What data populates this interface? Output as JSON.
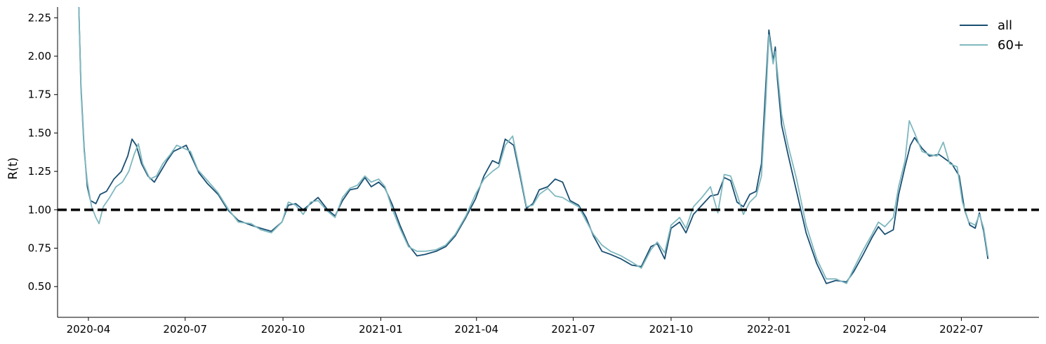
{
  "chart_data": {
    "type": "line",
    "title": "",
    "xlabel": "",
    "ylabel": "R(t)",
    "xlim": [
      "2020-03-03",
      "2022-09-12"
    ],
    "ylim": [
      0.3,
      2.32
    ],
    "x_ticks": [
      "2020-04",
      "2020-07",
      "2020-10",
      "2021-01",
      "2021-04",
      "2021-07",
      "2021-10",
      "2022-01",
      "2022-04",
      "2022-07"
    ],
    "x_tick_dates": [
      "2020-04-01",
      "2020-07-01",
      "2020-10-01",
      "2021-01-01",
      "2021-04-01",
      "2021-07-01",
      "2021-10-01",
      "2022-01-01",
      "2022-04-01",
      "2022-07-01"
    ],
    "y_ticks": [
      "0.50",
      "0.75",
      "1.00",
      "1.25",
      "1.50",
      "1.75",
      "2.00",
      "2.25"
    ],
    "y_tick_values": [
      0.5,
      0.75,
      1.0,
      1.25,
      1.5,
      1.75,
      2.0,
      2.25
    ],
    "reference_line": {
      "y": 1.0,
      "style": "dashed",
      "color": "#000000"
    },
    "legend": {
      "placement": "top-right"
    },
    "grid": false,
    "series": [
      {
        "name": "all",
        "color": "#1a4f73",
        "points": [
          [
            "2020-03-23",
            2.32
          ],
          [
            "2020-03-25",
            1.8
          ],
          [
            "2020-03-28",
            1.4
          ],
          [
            "2020-03-31",
            1.15
          ],
          [
            "2020-04-03",
            1.06
          ],
          [
            "2020-04-08",
            1.04
          ],
          [
            "2020-04-12",
            1.1
          ],
          [
            "2020-04-18",
            1.12
          ],
          [
            "2020-04-25",
            1.2
          ],
          [
            "2020-05-02",
            1.25
          ],
          [
            "2020-05-08",
            1.35
          ],
          [
            "2020-05-12",
            1.46
          ],
          [
            "2020-05-16",
            1.42
          ],
          [
            "2020-05-21",
            1.3
          ],
          [
            "2020-05-27",
            1.22
          ],
          [
            "2020-06-02",
            1.18
          ],
          [
            "2020-06-08",
            1.25
          ],
          [
            "2020-06-14",
            1.32
          ],
          [
            "2020-06-20",
            1.38
          ],
          [
            "2020-06-26",
            1.4
          ],
          [
            "2020-07-02",
            1.42
          ],
          [
            "2020-07-08",
            1.33
          ],
          [
            "2020-07-14",
            1.24
          ],
          [
            "2020-07-22",
            1.17
          ],
          [
            "2020-08-01",
            1.1
          ],
          [
            "2020-08-10",
            1.0
          ],
          [
            "2020-08-20",
            0.93
          ],
          [
            "2020-09-01",
            0.9
          ],
          [
            "2020-09-10",
            0.88
          ],
          [
            "2020-09-20",
            0.86
          ],
          [
            "2020-09-30",
            0.92
          ],
          [
            "2020-10-06",
            1.03
          ],
          [
            "2020-10-13",
            1.04
          ],
          [
            "2020-10-20",
            1.0
          ],
          [
            "2020-10-27",
            1.04
          ],
          [
            "2020-11-03",
            1.08
          ],
          [
            "2020-11-12",
            1.0
          ],
          [
            "2020-11-19",
            0.96
          ],
          [
            "2020-11-26",
            1.06
          ],
          [
            "2020-12-03",
            1.13
          ],
          [
            "2020-12-10",
            1.14
          ],
          [
            "2020-12-17",
            1.21
          ],
          [
            "2020-12-23",
            1.15
          ],
          [
            "2020-12-30",
            1.18
          ],
          [
            "2021-01-05",
            1.14
          ],
          [
            "2021-01-12",
            1.03
          ],
          [
            "2021-01-19",
            0.9
          ],
          [
            "2021-01-27",
            0.77
          ],
          [
            "2021-02-04",
            0.7
          ],
          [
            "2021-02-12",
            0.71
          ],
          [
            "2021-02-22",
            0.73
          ],
          [
            "2021-03-03",
            0.76
          ],
          [
            "2021-03-12",
            0.83
          ],
          [
            "2021-03-22",
            0.95
          ],
          [
            "2021-03-31",
            1.07
          ],
          [
            "2021-04-08",
            1.22
          ],
          [
            "2021-04-16",
            1.32
          ],
          [
            "2021-04-22",
            1.3
          ],
          [
            "2021-04-28",
            1.46
          ],
          [
            "2021-05-06",
            1.42
          ],
          [
            "2021-05-12",
            1.22
          ],
          [
            "2021-05-18",
            1.01
          ],
          [
            "2021-05-24",
            1.04
          ],
          [
            "2021-05-30",
            1.13
          ],
          [
            "2021-06-07",
            1.15
          ],
          [
            "2021-06-14",
            1.2
          ],
          [
            "2021-06-21",
            1.18
          ],
          [
            "2021-06-28",
            1.06
          ],
          [
            "2021-07-06",
            1.03
          ],
          [
            "2021-07-13",
            0.95
          ],
          [
            "2021-07-20",
            0.83
          ],
          [
            "2021-07-28",
            0.73
          ],
          [
            "2021-08-05",
            0.71
          ],
          [
            "2021-08-15",
            0.68
          ],
          [
            "2021-08-25",
            0.64
          ],
          [
            "2021-09-03",
            0.63
          ],
          [
            "2021-09-12",
            0.76
          ],
          [
            "2021-09-18",
            0.78
          ],
          [
            "2021-09-25",
            0.68
          ],
          [
            "2021-10-01",
            0.88
          ],
          [
            "2021-10-09",
            0.92
          ],
          [
            "2021-10-15",
            0.85
          ],
          [
            "2021-10-22",
            0.97
          ],
          [
            "2021-10-30",
            1.03
          ],
          [
            "2021-11-07",
            1.09
          ],
          [
            "2021-11-14",
            1.1
          ],
          [
            "2021-11-20",
            1.21
          ],
          [
            "2021-11-26",
            1.19
          ],
          [
            "2021-12-02",
            1.05
          ],
          [
            "2021-12-08",
            1.02
          ],
          [
            "2021-12-14",
            1.1
          ],
          [
            "2021-12-20",
            1.12
          ],
          [
            "2021-12-25",
            1.3
          ],
          [
            "2021-12-29",
            1.8
          ],
          [
            "2022-01-01",
            2.17
          ],
          [
            "2022-01-05",
            1.97
          ],
          [
            "2022-01-07",
            2.06
          ],
          [
            "2022-01-09",
            1.85
          ],
          [
            "2022-01-13",
            1.55
          ],
          [
            "2022-01-19",
            1.36
          ],
          [
            "2022-01-27",
            1.12
          ],
          [
            "2022-02-05",
            0.85
          ],
          [
            "2022-02-15",
            0.65
          ],
          [
            "2022-02-24",
            0.52
          ],
          [
            "2022-03-05",
            0.54
          ],
          [
            "2022-03-15",
            0.53
          ],
          [
            "2022-03-22",
            0.6
          ],
          [
            "2022-03-30",
            0.7
          ],
          [
            "2022-04-08",
            0.82
          ],
          [
            "2022-04-14",
            0.89
          ],
          [
            "2022-04-20",
            0.84
          ],
          [
            "2022-04-28",
            0.87
          ],
          [
            "2022-05-03",
            1.1
          ],
          [
            "2022-05-09",
            1.28
          ],
          [
            "2022-05-14",
            1.42
          ],
          [
            "2022-05-18",
            1.47
          ],
          [
            "2022-05-25",
            1.4
          ],
          [
            "2022-06-01",
            1.35
          ],
          [
            "2022-06-10",
            1.36
          ],
          [
            "2022-06-16",
            1.33
          ],
          [
            "2022-06-22",
            1.3
          ],
          [
            "2022-06-29",
            1.22
          ],
          [
            "2022-07-04",
            1.0
          ],
          [
            "2022-07-09",
            0.9
          ],
          [
            "2022-07-14",
            0.88
          ],
          [
            "2022-07-18",
            0.98
          ],
          [
            "2022-07-22",
            0.86
          ],
          [
            "2022-07-26",
            0.68
          ]
        ]
      },
      {
        "name": "60+",
        "color": "#7fb8bf",
        "points": [
          [
            "2020-03-23",
            2.32
          ],
          [
            "2020-03-25",
            1.78
          ],
          [
            "2020-03-28",
            1.38
          ],
          [
            "2020-03-31",
            1.18
          ],
          [
            "2020-04-04",
            1.02
          ],
          [
            "2020-04-08",
            0.95
          ],
          [
            "2020-04-11",
            0.91
          ],
          [
            "2020-04-15",
            1.02
          ],
          [
            "2020-04-21",
            1.08
          ],
          [
            "2020-04-27",
            1.15
          ],
          [
            "2020-05-03",
            1.18
          ],
          [
            "2020-05-09",
            1.25
          ],
          [
            "2020-05-14",
            1.36
          ],
          [
            "2020-05-18",
            1.43
          ],
          [
            "2020-05-22",
            1.3
          ],
          [
            "2020-05-29",
            1.2
          ],
          [
            "2020-06-04",
            1.22
          ],
          [
            "2020-06-10",
            1.3
          ],
          [
            "2020-06-17",
            1.36
          ],
          [
            "2020-06-23",
            1.42
          ],
          [
            "2020-06-30",
            1.4
          ],
          [
            "2020-07-06",
            1.38
          ],
          [
            "2020-07-13",
            1.26
          ],
          [
            "2020-07-22",
            1.19
          ],
          [
            "2020-08-01",
            1.11
          ],
          [
            "2020-08-10",
            1.01
          ],
          [
            "2020-08-20",
            0.92
          ],
          [
            "2020-09-01",
            0.91
          ],
          [
            "2020-09-10",
            0.87
          ],
          [
            "2020-09-20",
            0.85
          ],
          [
            "2020-09-30",
            0.92
          ],
          [
            "2020-10-06",
            1.05
          ],
          [
            "2020-10-13",
            1.03
          ],
          [
            "2020-10-20",
            0.97
          ],
          [
            "2020-10-27",
            1.05
          ],
          [
            "2020-11-03",
            1.06
          ],
          [
            "2020-11-12",
            0.99
          ],
          [
            "2020-11-19",
            0.95
          ],
          [
            "2020-11-26",
            1.08
          ],
          [
            "2020-12-03",
            1.14
          ],
          [
            "2020-12-10",
            1.16
          ],
          [
            "2020-12-17",
            1.22
          ],
          [
            "2020-12-23",
            1.18
          ],
          [
            "2020-12-30",
            1.2
          ],
          [
            "2021-01-05",
            1.15
          ],
          [
            "2021-01-12",
            1.0
          ],
          [
            "2021-01-19",
            0.88
          ],
          [
            "2021-01-27",
            0.76
          ],
          [
            "2021-02-04",
            0.73
          ],
          [
            "2021-02-12",
            0.73
          ],
          [
            "2021-02-22",
            0.74
          ],
          [
            "2021-03-03",
            0.77
          ],
          [
            "2021-03-12",
            0.84
          ],
          [
            "2021-03-22",
            0.96
          ],
          [
            "2021-03-31",
            1.1
          ],
          [
            "2021-04-08",
            1.2
          ],
          [
            "2021-04-16",
            1.25
          ],
          [
            "2021-04-22",
            1.28
          ],
          [
            "2021-04-28",
            1.42
          ],
          [
            "2021-05-05",
            1.48
          ],
          [
            "2021-05-12",
            1.24
          ],
          [
            "2021-05-18",
            1.02
          ],
          [
            "2021-05-24",
            1.03
          ],
          [
            "2021-05-30",
            1.1
          ],
          [
            "2021-06-07",
            1.14
          ],
          [
            "2021-06-14",
            1.09
          ],
          [
            "2021-06-21",
            1.08
          ],
          [
            "2021-06-28",
            1.05
          ],
          [
            "2021-07-06",
            1.02
          ],
          [
            "2021-07-13",
            0.93
          ],
          [
            "2021-07-20",
            0.84
          ],
          [
            "2021-07-28",
            0.77
          ],
          [
            "2021-08-05",
            0.73
          ],
          [
            "2021-08-15",
            0.7
          ],
          [
            "2021-08-25",
            0.66
          ],
          [
            "2021-09-03",
            0.62
          ],
          [
            "2021-09-12",
            0.74
          ],
          [
            "2021-09-18",
            0.79
          ],
          [
            "2021-09-25",
            0.72
          ],
          [
            "2021-10-01",
            0.9
          ],
          [
            "2021-10-09",
            0.95
          ],
          [
            "2021-10-15",
            0.88
          ],
          [
            "2021-10-22",
            1.02
          ],
          [
            "2021-10-30",
            1.08
          ],
          [
            "2021-11-07",
            1.15
          ],
          [
            "2021-11-14",
            0.98
          ],
          [
            "2021-11-20",
            1.23
          ],
          [
            "2021-11-26",
            1.22
          ],
          [
            "2021-12-02",
            1.1
          ],
          [
            "2021-12-08",
            0.97
          ],
          [
            "2021-12-14",
            1.05
          ],
          [
            "2021-12-20",
            1.09
          ],
          [
            "2021-12-25",
            1.22
          ],
          [
            "2021-12-29",
            1.7
          ],
          [
            "2022-01-01",
            2.14
          ],
          [
            "2022-01-05",
            1.95
          ],
          [
            "2022-01-07",
            2.03
          ],
          [
            "2022-01-09",
            1.9
          ],
          [
            "2022-01-13",
            1.62
          ],
          [
            "2022-01-19",
            1.42
          ],
          [
            "2022-01-27",
            1.2
          ],
          [
            "2022-02-05",
            0.9
          ],
          [
            "2022-02-15",
            0.68
          ],
          [
            "2022-02-24",
            0.55
          ],
          [
            "2022-03-05",
            0.55
          ],
          [
            "2022-03-15",
            0.52
          ],
          [
            "2022-03-22",
            0.62
          ],
          [
            "2022-03-30",
            0.73
          ],
          [
            "2022-04-08",
            0.84
          ],
          [
            "2022-04-14",
            0.92
          ],
          [
            "2022-04-20",
            0.89
          ],
          [
            "2022-04-28",
            0.95
          ],
          [
            "2022-05-03",
            1.15
          ],
          [
            "2022-05-09",
            1.32
          ],
          [
            "2022-05-13",
            1.58
          ],
          [
            "2022-05-18",
            1.5
          ],
          [
            "2022-05-25",
            1.38
          ],
          [
            "2022-06-01",
            1.36
          ],
          [
            "2022-06-08",
            1.35
          ],
          [
            "2022-06-14",
            1.44
          ],
          [
            "2022-06-20",
            1.3
          ],
          [
            "2022-06-27",
            1.28
          ],
          [
            "2022-07-02",
            1.05
          ],
          [
            "2022-07-08",
            0.92
          ],
          [
            "2022-07-14",
            0.9
          ],
          [
            "2022-07-18",
            0.97
          ],
          [
            "2022-07-22",
            0.88
          ],
          [
            "2022-07-26",
            0.7
          ]
        ]
      }
    ]
  }
}
